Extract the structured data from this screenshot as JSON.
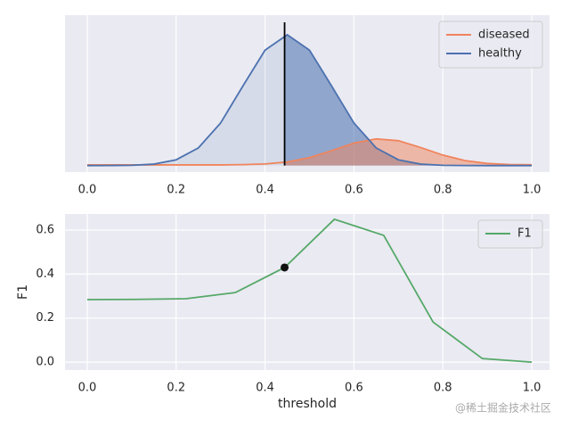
{
  "chart_data": [
    {
      "type": "density",
      "x": [
        0,
        0.05,
        0.1,
        0.15,
        0.2,
        0.25,
        0.3,
        0.35,
        0.4,
        0.45,
        0.5,
        0.55,
        0.6,
        0.65,
        0.7,
        0.75,
        0.8,
        0.85,
        0.9,
        0.95,
        1.0
      ],
      "series": [
        {
          "name": "diseased",
          "color": "#f0845c",
          "values": [
            0.005,
            0.005,
            0.005,
            0.005,
            0.005,
            0.005,
            0.005,
            0.007,
            0.012,
            0.027,
            0.061,
            0.114,
            0.172,
            0.204,
            0.19,
            0.138,
            0.08,
            0.038,
            0.016,
            0.008,
            0.006
          ]
        },
        {
          "name": "healthy",
          "color": "#4c72b0",
          "values": [
            0.0,
            0.0003,
            0.0022,
            0.011,
            0.044,
            0.135,
            0.325,
            0.607,
            0.882,
            1.0,
            0.882,
            0.607,
            0.325,
            0.135,
            0.044,
            0.011,
            0.0022,
            0.0003,
            0.0,
            0.0,
            0.0
          ]
        }
      ],
      "threshold": 0.444,
      "xlim": [
        -0.05,
        1.04
      ],
      "ylim": [
        -0.05,
        1.15
      ],
      "xticks": [
        {
          "value": 0,
          "label": "0.0"
        },
        {
          "value": 0.2,
          "label": "0.2"
        },
        {
          "value": 0.4,
          "label": "0.4"
        },
        {
          "value": 0.6,
          "label": "0.6"
        },
        {
          "value": 0.8,
          "label": "0.8"
        },
        {
          "value": 1,
          "label": "1.0"
        }
      ],
      "grid": true,
      "legend": "upper-right"
    },
    {
      "type": "line",
      "x": [
        0,
        0.111,
        0.222,
        0.333,
        0.444,
        0.556,
        0.667,
        0.778,
        0.889,
        1.0
      ],
      "series": [
        {
          "name": "F1",
          "color": "#55a868",
          "values": [
            0.284,
            0.285,
            0.288,
            0.316,
            0.43,
            0.649,
            0.576,
            0.182,
            0.016,
            0.0
          ]
        }
      ],
      "marker": {
        "x": 0.444,
        "y": 0.43
      },
      "xlabel": "threshold",
      "ylabel": "F1",
      "xlim": [
        -0.05,
        1.04
      ],
      "ylim": [
        -0.036,
        0.673
      ],
      "xticks": [
        {
          "value": 0,
          "label": "0.0"
        },
        {
          "value": 0.2,
          "label": "0.2"
        },
        {
          "value": 0.4,
          "label": "0.4"
        },
        {
          "value": 0.6,
          "label": "0.6"
        },
        {
          "value": 0.8,
          "label": "0.8"
        },
        {
          "value": 1,
          "label": "1.0"
        }
      ],
      "yticks": [
        {
          "value": 0,
          "label": "0.0"
        },
        {
          "value": 0.2,
          "label": "0.2"
        },
        {
          "value": 0.4,
          "label": "0.4"
        },
        {
          "value": 0.6,
          "label": "0.6"
        }
      ],
      "grid": true,
      "legend": "upper-right"
    }
  ],
  "watermark": "@稀土掘金技术社区"
}
